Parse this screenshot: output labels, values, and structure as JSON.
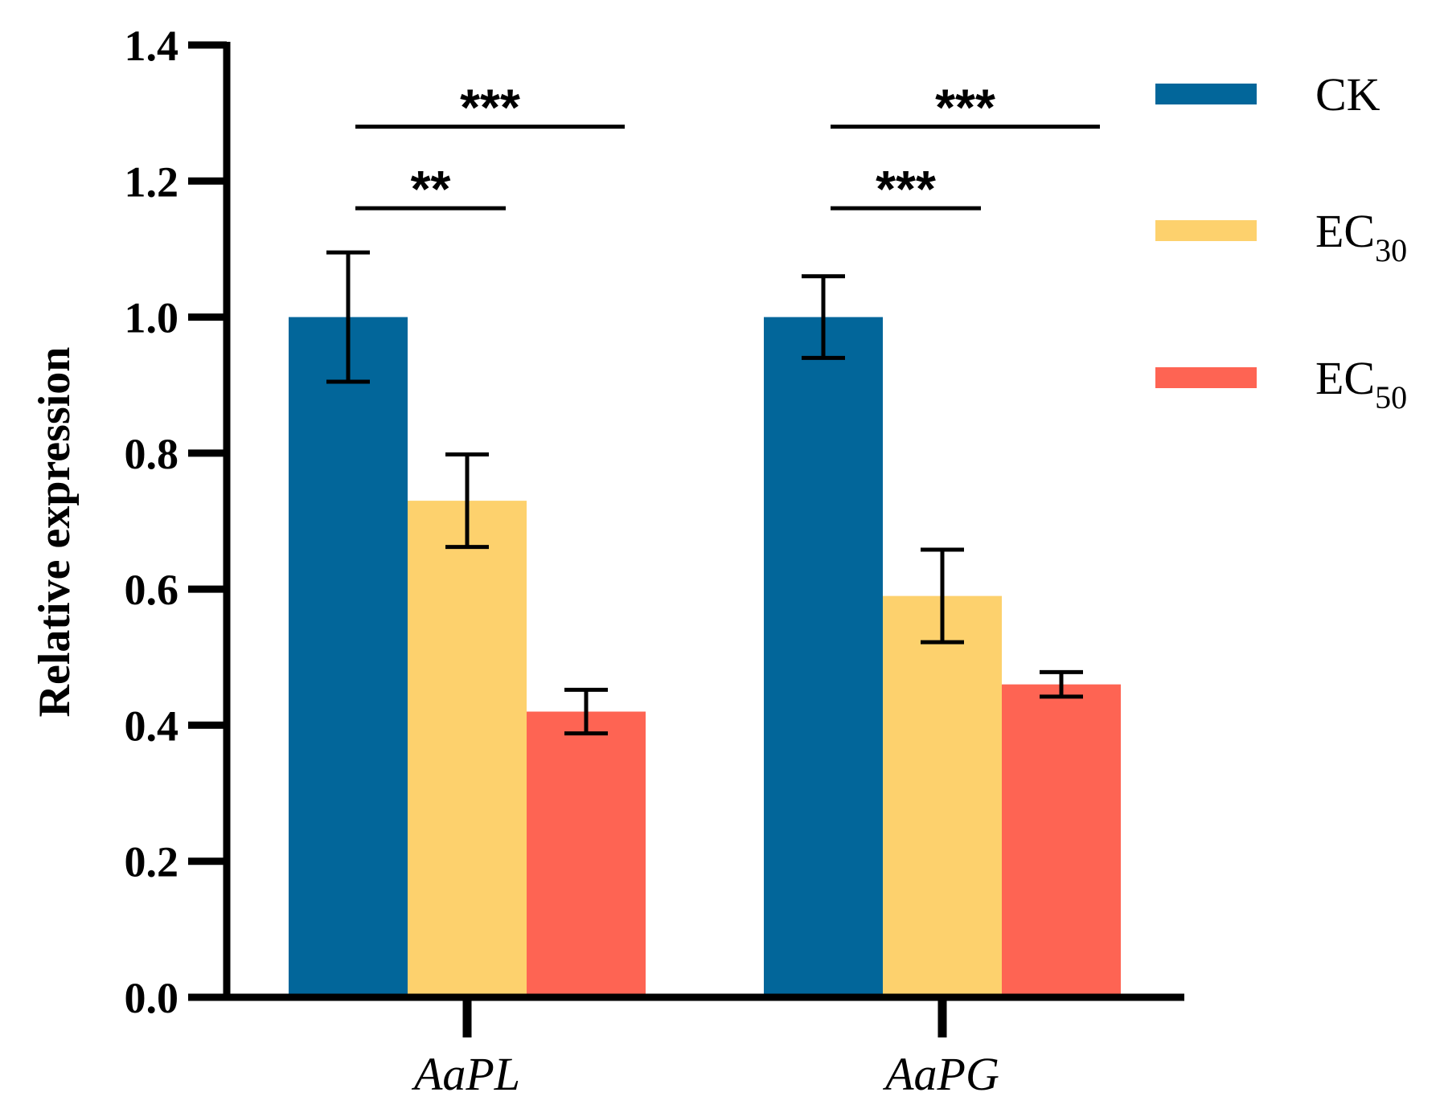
{
  "chart_data": {
    "type": "bar",
    "title": "",
    "xlabel": "",
    "ylabel": "Relative expression",
    "ylim": [
      0,
      1.4
    ],
    "yticks": [
      "0.0",
      "0.2",
      "0.4",
      "0.6",
      "0.8",
      "1.0",
      "1.2",
      "1.4"
    ],
    "categories": [
      "AaPL",
      "AaPG"
    ],
    "series": [
      {
        "name": "CK",
        "label_main": "CK",
        "label_sub": "",
        "color": "#02669A",
        "values": [
          1.0,
          1.0
        ],
        "errors": [
          0.095,
          0.06
        ]
      },
      {
        "name": "EC30",
        "label_main": "EC",
        "label_sub": "30",
        "color": "#FDD16D",
        "values": [
          0.73,
          0.59
        ],
        "errors": [
          0.068,
          0.068
        ]
      },
      {
        "name": "EC50",
        "label_main": "EC",
        "label_sub": "50",
        "color": "#FE6453",
        "values": [
          0.42,
          0.46
        ],
        "errors": [
          0.032,
          0.018
        ]
      }
    ],
    "significance": [
      {
        "category": "AaPL",
        "from_series": "CK",
        "to_series": "EC30",
        "level": 1.16,
        "label": "**"
      },
      {
        "category": "AaPL",
        "from_series": "CK",
        "to_series": "EC50",
        "level": 1.28,
        "label": "***"
      },
      {
        "category": "AaPG",
        "from_series": "CK",
        "to_series": "EC30",
        "level": 1.16,
        "label": "***"
      },
      {
        "category": "AaPG",
        "from_series": "CK",
        "to_series": "EC50",
        "level": 1.28,
        "label": "***"
      }
    ],
    "legend": "top-right"
  }
}
